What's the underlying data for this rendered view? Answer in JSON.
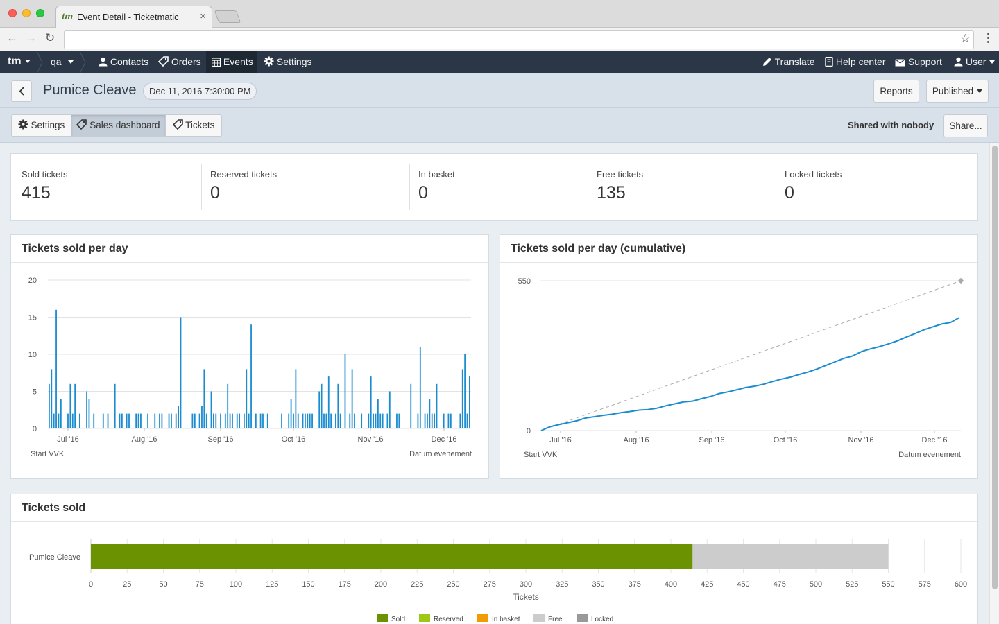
{
  "browser": {
    "tab_title": "Event Detail - Ticketmatic",
    "tab_favicon": "tm",
    "tab_close": "×",
    "url": "",
    "back_glyph": "←",
    "forward_glyph": "→",
    "reload_glyph": "↻",
    "star_glyph": "☆",
    "menu_glyph": "⋮"
  },
  "navbar": {
    "brand": "tm",
    "account": "qa",
    "items": [
      {
        "label": "Contacts",
        "icon": "user-icon"
      },
      {
        "label": "Orders",
        "icon": "tag-icon"
      },
      {
        "label": "Events",
        "icon": "calendar-icon",
        "active": true
      },
      {
        "label": "Settings",
        "icon": "gear-icon"
      }
    ],
    "right_items": [
      {
        "label": "Translate",
        "icon": "pencil-icon"
      },
      {
        "label": "Help center",
        "icon": "book-icon"
      },
      {
        "label": "Support",
        "icon": "envelope-icon"
      },
      {
        "label": "User",
        "icon": "user-icon"
      }
    ]
  },
  "page": {
    "title": "Pumice Cleave",
    "date": "Dec 11, 2016 7:30:00 PM",
    "reports_label": "Reports",
    "status_label": "Published"
  },
  "tabs": {
    "settings": "Settings",
    "sales_dashboard": "Sales dashboard",
    "tickets": "Tickets",
    "shared": "Shared with nobody",
    "share": "Share..."
  },
  "stats": [
    {
      "label": "Sold tickets",
      "value": "415"
    },
    {
      "label": "Reserved tickets",
      "value": "0"
    },
    {
      "label": "In basket",
      "value": "0"
    },
    {
      "label": "Free tickets",
      "value": "135"
    },
    {
      "label": "Locked tickets",
      "value": "0"
    }
  ],
  "colors": {
    "accent_blue": "#1a8ccf",
    "sold_green": "#6b9200",
    "reserved": "#9fc716",
    "in_basket": "#f29b05",
    "free": "#cccccc",
    "locked": "#999999"
  },
  "chart_data": [
    {
      "type": "bar",
      "title": "Tickets sold per day",
      "ylim": [
        0,
        20
      ],
      "y_ticks": [
        "0",
        "5",
        "10",
        "15",
        "20"
      ],
      "x_ticks": [
        "Jul '16",
        "Aug '16",
        "Sep '16",
        "Oct '16",
        "Nov '16",
        "Dec '16"
      ],
      "start_label": "Start VVK",
      "end_label": "Datum evenement",
      "values": [
        6,
        8,
        2,
        16,
        2,
        4,
        0,
        0,
        2,
        6,
        2,
        6,
        0,
        2,
        0,
        0,
        5,
        4,
        0,
        2,
        0,
        0,
        0,
        2,
        0,
        2,
        0,
        0,
        6,
        0,
        2,
        2,
        0,
        2,
        2,
        0,
        0,
        2,
        2,
        2,
        0,
        0,
        2,
        0,
        0,
        2,
        0,
        2,
        2,
        0,
        0,
        2,
        2,
        0,
        2,
        3,
        15,
        0,
        0,
        0,
        0,
        2,
        2,
        0,
        2,
        3,
        8,
        2,
        0,
        5,
        2,
        2,
        0,
        2,
        0,
        2,
        6,
        2,
        2,
        0,
        2,
        2,
        0,
        2,
        8,
        2,
        14,
        0,
        2,
        0,
        2,
        2,
        0,
        2,
        0,
        0,
        0,
        0,
        0,
        2,
        0,
        0,
        2,
        4,
        2,
        8,
        2,
        0,
        2,
        2,
        2,
        2,
        2,
        0,
        0,
        5,
        6,
        2,
        2,
        7,
        2,
        0,
        2,
        6,
        2,
        0,
        10,
        0,
        2,
        8,
        2,
        0,
        0,
        2,
        0,
        0,
        2,
        7,
        2,
        2,
        4,
        2,
        2,
        0,
        2,
        5,
        0,
        0,
        2,
        2,
        0,
        0,
        0,
        0,
        6,
        0,
        0,
        2,
        11,
        0,
        2,
        2,
        4,
        2,
        2,
        6,
        0,
        0,
        2,
        0,
        2,
        2,
        0,
        0,
        0,
        2,
        8,
        10,
        2,
        7
      ]
    },
    {
      "type": "line",
      "title": "Tickets sold per day (cumulative)",
      "ylim": [
        0,
        550
      ],
      "y_ticks": [
        "0",
        "550"
      ],
      "x_ticks": [
        "Jul '16",
        "Aug '16",
        "Sep '16",
        "Oct '16",
        "Nov '16",
        "Dec '16"
      ],
      "start_label": "Start VVK",
      "end_label": "Datum evenement",
      "series": [
        {
          "values": [
            0,
            14,
            22,
            29,
            36,
            46,
            51,
            56,
            60,
            66,
            70,
            75,
            77,
            82,
            91,
            98,
            105,
            108,
            117,
            125,
            136,
            142,
            150,
            158,
            163,
            170,
            180,
            189,
            196,
            206,
            215,
            226,
            239,
            252,
            265,
            274,
            290,
            300,
            308,
            318,
            329,
            343,
            356,
            370,
            381,
            391,
            397,
            415
          ]
        },
        {
          "values": [
            0,
            550
          ],
          "style": "dashed target"
        }
      ]
    },
    {
      "type": "bar",
      "title": "Tickets sold",
      "categories": [
        "Pumice Cleave"
      ],
      "xlabel": "Tickets",
      "xlim": [
        0,
        600
      ],
      "x_ticks": [
        "0",
        "25",
        "50",
        "75",
        "100",
        "125",
        "150",
        "175",
        "200",
        "225",
        "250",
        "275",
        "300",
        "325",
        "350",
        "375",
        "400",
        "425",
        "450",
        "475",
        "500",
        "525",
        "550",
        "575",
        "600"
      ],
      "series": [
        {
          "name": "Sold",
          "values": [
            415
          ]
        },
        {
          "name": "Reserved",
          "values": [
            0
          ]
        },
        {
          "name": "In basket",
          "values": [
            0
          ]
        },
        {
          "name": "Free",
          "values": [
            135
          ]
        },
        {
          "name": "Locked",
          "values": [
            0
          ]
        }
      ]
    }
  ]
}
